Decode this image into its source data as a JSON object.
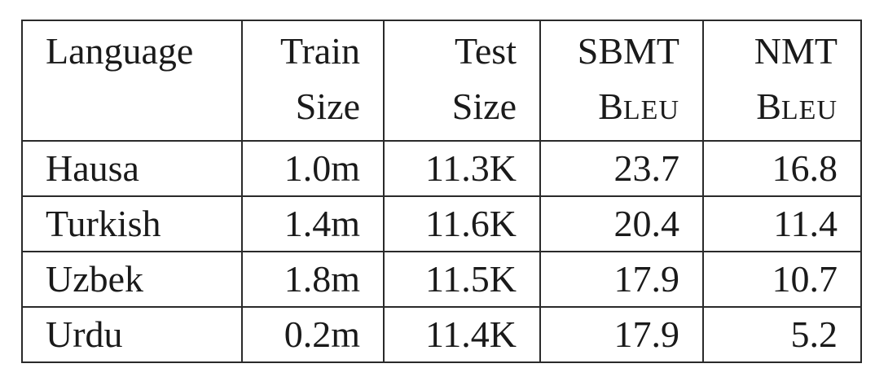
{
  "table": {
    "headers": [
      {
        "line1": "Language",
        "line2": ""
      },
      {
        "line1": "Train",
        "line2": "Size"
      },
      {
        "line1": "Test",
        "line2": "Size"
      },
      {
        "line1": "SBMT",
        "line2_cap": "B",
        "line2_rest": "LEU"
      },
      {
        "line1": "NMT",
        "line2_cap": "B",
        "line2_rest": "LEU"
      }
    ],
    "rows": [
      {
        "language": "Hausa",
        "train_size": "1.0m",
        "test_size": "11.3K",
        "sbmt_bleu": "23.7",
        "nmt_bleu": "16.8"
      },
      {
        "language": "Turkish",
        "train_size": "1.4m",
        "test_size": "11.6K",
        "sbmt_bleu": "20.4",
        "nmt_bleu": "11.4"
      },
      {
        "language": "Uzbek",
        "train_size": "1.8m",
        "test_size": "11.5K",
        "sbmt_bleu": "17.9",
        "nmt_bleu": "10.7"
      },
      {
        "language": "Urdu",
        "train_size": "0.2m",
        "test_size": "11.4K",
        "sbmt_bleu": "17.9",
        "nmt_bleu": "5.2"
      }
    ]
  }
}
